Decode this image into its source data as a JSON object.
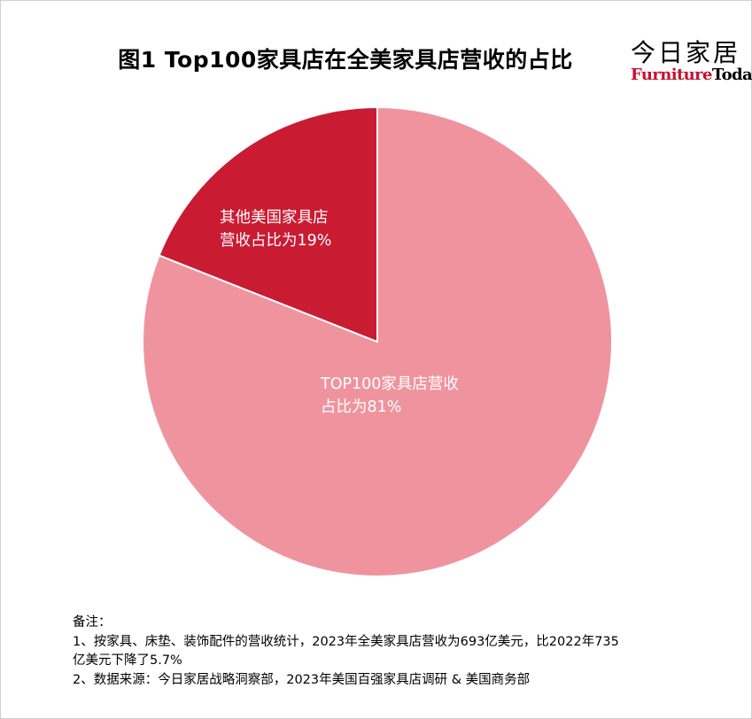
{
  "title": "图1 Top100家具店在全美家具店营收的占比",
  "logo": {
    "cn": "今日家居",
    "en_part1": "Furniture",
    "en_part2": "Today"
  },
  "chart_data": {
    "type": "pie",
    "title": "图1 Top100家具店在全美家具店营收的占比",
    "slices": [
      {
        "label": "TOP100家具店营收占比为81%",
        "label_lines": [
          "TOP100家具店营收",
          "占比为81%"
        ],
        "value": 81,
        "color": "#ef949e"
      },
      {
        "label": "其他美国家具店营收占比为19%",
        "label_lines": [
          "其他美国家具店",
          "营收占比为19%"
        ],
        "value": 19,
        "color": "#c91b32"
      }
    ],
    "start": "12 o'clock",
    "direction": "clockwise",
    "legend": "none"
  },
  "notes": {
    "heading": "备注：",
    "line1": "1、按家具、床垫、装饰配件的营收统计，2023年全美家具店营收为693亿美元，比2022年735",
    "line2": "亿美元下降了5.7%",
    "line3": "2、数据来源：今日家居战略洞察部，2023年美国百强家具店调研 & 美国商务部"
  }
}
